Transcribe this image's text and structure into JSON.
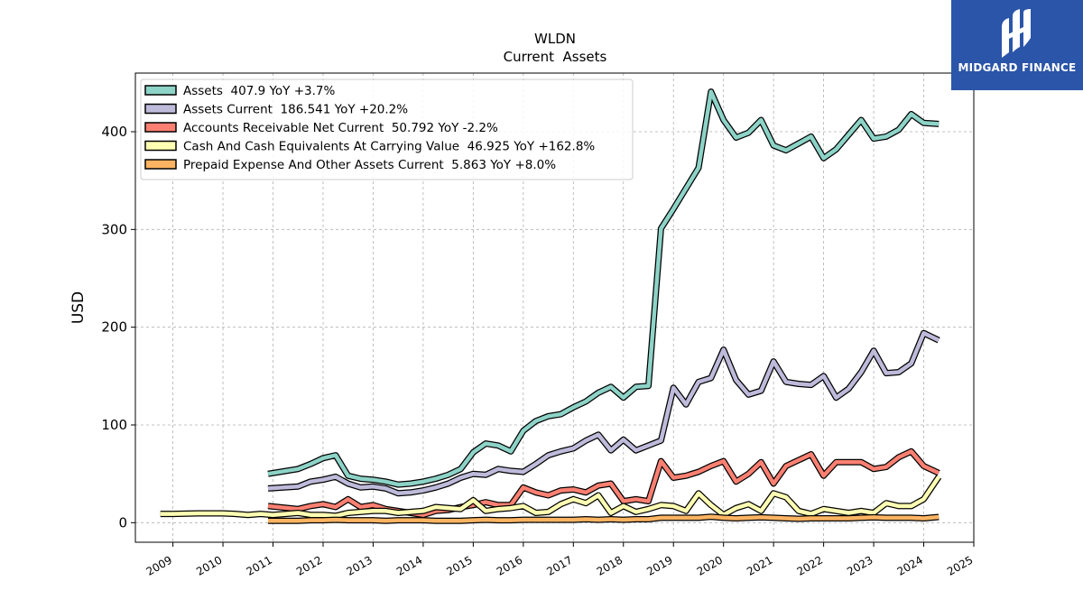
{
  "brand": {
    "name": "MIDGARD FINANCE"
  },
  "chart_data": {
    "type": "line",
    "title": "WLDN",
    "subtitle": "Current  Assets",
    "ylabel": "USD",
    "xlabel": "",
    "xlim": [
      2008.25,
      2025
    ],
    "ylim": [
      -20,
      460
    ],
    "xticks": [
      2009,
      2010,
      2011,
      2012,
      2013,
      2014,
      2015,
      2016,
      2017,
      2018,
      2019,
      2020,
      2021,
      2022,
      2023,
      2024,
      2025
    ],
    "yticks": [
      0,
      100,
      200,
      300,
      400
    ],
    "grid": true,
    "legend_position": "top-left",
    "series": [
      {
        "name": "Assets  407.9 YoY +3.7%",
        "color": "#8dd3c7",
        "x": [
          2010.9,
          2011.5,
          2011.75,
          2012.0,
          2012.25,
          2012.5,
          2012.75,
          2013.0,
          2013.25,
          2013.5,
          2013.75,
          2014.0,
          2014.25,
          2014.5,
          2014.75,
          2015.0,
          2015.25,
          2015.5,
          2015.75,
          2016.0,
          2016.25,
          2016.5,
          2016.75,
          2017.0,
          2017.25,
          2017.5,
          2017.75,
          2018.0,
          2018.25,
          2018.5,
          2018.75,
          2019.0,
          2019.25,
          2019.5,
          2019.75,
          2020.0,
          2020.25,
          2020.5,
          2020.75,
          2021.0,
          2021.25,
          2021.5,
          2021.75,
          2022.0,
          2022.25,
          2022.5,
          2022.75,
          2023.0,
          2023.25,
          2023.5,
          2023.75,
          2024.0,
          2024.3
        ],
        "values": [
          50,
          55,
          60,
          66,
          69,
          48,
          45,
          44,
          42,
          39,
          40,
          42,
          45,
          49,
          55,
          72,
          81,
          79,
          73,
          94,
          104,
          109,
          111,
          118,
          124,
          133,
          139,
          128,
          139,
          140,
          301,
          321,
          342,
          363,
          441,
          412,
          394,
          399,
          412,
          386,
          381,
          388,
          395,
          373,
          382,
          397,
          412,
          393,
          395,
          402,
          418,
          409,
          407.9
        ]
      },
      {
        "name": "Assets Current  186.541 YoY +20.2%",
        "color": "#bebada",
        "x": [
          2010.9,
          2011.5,
          2011.75,
          2012.0,
          2012.25,
          2012.5,
          2012.75,
          2013.0,
          2013.25,
          2013.5,
          2013.75,
          2014.0,
          2014.25,
          2014.5,
          2014.75,
          2015.0,
          2015.25,
          2015.5,
          2015.75,
          2016.0,
          2016.25,
          2016.5,
          2016.75,
          2017.0,
          2017.25,
          2017.5,
          2017.75,
          2018.0,
          2018.25,
          2018.5,
          2018.75,
          2019.0,
          2019.25,
          2019.5,
          2019.75,
          2020.0,
          2020.25,
          2020.5,
          2020.75,
          2021.0,
          2021.25,
          2021.5,
          2021.75,
          2022.0,
          2022.25,
          2022.5,
          2022.75,
          2023.0,
          2023.25,
          2023.5,
          2023.75,
          2024.0,
          2024.3
        ],
        "values": [
          35,
          37,
          42,
          44,
          47,
          40,
          36,
          37,
          35,
          30,
          31,
          33,
          36,
          40,
          46,
          50,
          49,
          55,
          53,
          52,
          60,
          69,
          73,
          76,
          84,
          90,
          74,
          85,
          74,
          79,
          84,
          138,
          121,
          144,
          148,
          177,
          146,
          131,
          135,
          165,
          144,
          142,
          141,
          150,
          128,
          137,
          154,
          176,
          153,
          154,
          163,
          194,
          186.541
        ]
      },
      {
        "name": "Accounts Receivable Net Current  50.792 YoY -2.2%",
        "color": "#fb8072",
        "x": [
          2010.9,
          2011.5,
          2011.75,
          2012.0,
          2012.25,
          2012.5,
          2012.75,
          2013.0,
          2013.25,
          2013.5,
          2013.75,
          2014.0,
          2014.25,
          2014.5,
          2014.75,
          2015.0,
          2015.25,
          2015.5,
          2015.75,
          2016.0,
          2016.25,
          2016.5,
          2016.75,
          2017.0,
          2017.25,
          2017.5,
          2017.75,
          2018.0,
          2018.25,
          2018.5,
          2018.75,
          2019.0,
          2019.25,
          2019.5,
          2019.75,
          2020.0,
          2020.25,
          2020.5,
          2020.75,
          2021.0,
          2021.25,
          2021.5,
          2021.75,
          2022.0,
          2022.25,
          2022.5,
          2022.75,
          2023.0,
          2023.25,
          2023.5,
          2023.75,
          2024.0,
          2024.3
        ],
        "values": [
          17,
          14,
          17,
          19,
          16,
          24,
          16,
          18,
          14,
          12,
          10,
          8,
          12,
          13,
          16,
          18,
          21,
          18,
          18,
          36,
          31,
          28,
          33,
          34,
          31,
          38,
          40,
          22,
          24,
          22,
          63,
          46,
          48,
          52,
          58,
          63,
          42,
          50,
          62,
          40,
          58,
          64,
          70,
          48,
          62,
          62,
          62,
          55,
          57,
          67,
          73,
          58,
          50.792
        ]
      },
      {
        "name": "Cash And Cash Equivalents At Carrying Value  46.925 YoY +162.8%",
        "color": "#ffffb3",
        "x": [
          2008.75,
          2009.0,
          2009.5,
          2010.0,
          2010.25,
          2010.5,
          2010.75,
          2011.0,
          2011.5,
          2011.75,
          2012.0,
          2012.25,
          2012.5,
          2012.75,
          2013.0,
          2013.25,
          2013.5,
          2013.75,
          2014.0,
          2014.25,
          2014.5,
          2014.75,
          2015.0,
          2015.25,
          2015.5,
          2015.75,
          2016.0,
          2016.25,
          2016.5,
          2016.75,
          2017.0,
          2017.25,
          2017.5,
          2017.75,
          2018.0,
          2018.25,
          2018.5,
          2018.75,
          2019.0,
          2019.25,
          2019.5,
          2019.75,
          2020.0,
          2020.25,
          2020.5,
          2020.75,
          2021.0,
          2021.25,
          2021.5,
          2021.75,
          2022.0,
          2022.25,
          2022.5,
          2022.75,
          2023.0,
          2023.25,
          2023.5,
          2023.75,
          2024.0,
          2024.3
        ],
        "values": [
          9,
          9,
          9.5,
          9.5,
          9,
          8,
          9,
          8,
          10,
          8,
          8,
          7,
          10,
          11,
          12,
          12,
          10,
          11,
          12,
          16,
          15,
          14,
          23,
          12,
          14,
          15,
          17,
          10,
          11,
          19,
          24,
          20,
          28,
          10,
          17,
          11,
          14,
          18,
          17,
          12,
          30,
          18,
          8,
          15,
          19,
          12,
          30,
          26,
          12,
          9,
          14,
          12,
          10,
          12,
          10,
          20,
          17,
          17,
          24,
          46.925
        ]
      },
      {
        "name": "Prepaid Expense And Other Assets Current  5.863 YoY +8.0%",
        "color": "#fdb462",
        "x": [
          2010.9,
          2011.5,
          2011.75,
          2012.0,
          2012.25,
          2012.5,
          2012.75,
          2013.0,
          2013.25,
          2013.5,
          2013.75,
          2014.0,
          2014.25,
          2014.5,
          2014.75,
          2015.0,
          2015.25,
          2015.5,
          2015.75,
          2016.0,
          2016.25,
          2016.5,
          2016.75,
          2017.0,
          2017.25,
          2017.5,
          2017.75,
          2018.0,
          2018.25,
          2018.5,
          2018.75,
          2019.0,
          2019.25,
          2019.5,
          2019.75,
          2020.0,
          2020.25,
          2020.5,
          2020.75,
          2021.0,
          2021.25,
          2021.5,
          2021.75,
          2022.0,
          2022.25,
          2022.5,
          2022.75,
          2023.0,
          2023.25,
          2023.5,
          2023.75,
          2024.0,
          2024.3
        ],
        "values": [
          2,
          2,
          2.5,
          2.5,
          3,
          2.5,
          2.5,
          2.5,
          2,
          2.5,
          2.5,
          2.5,
          2,
          2,
          2,
          2.5,
          3,
          2.5,
          2.5,
          3,
          3,
          3,
          3,
          3,
          3.5,
          3,
          3.5,
          3,
          3.5,
          3.5,
          5,
          5,
          5,
          5,
          6,
          5,
          4.5,
          5,
          5.5,
          5,
          4.5,
          4,
          4.5,
          4.5,
          4.5,
          4.5,
          5,
          5.5,
          5,
          5,
          5,
          4.5,
          5.863
        ]
      }
    ]
  }
}
